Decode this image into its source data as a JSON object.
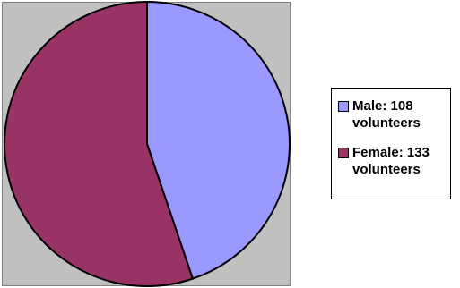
{
  "chart_data": {
    "type": "pie",
    "title": "",
    "slices": [
      {
        "label": "Male: 108 volunteers",
        "value": 108,
        "color": "#9999ff"
      },
      {
        "label": "Female: 133 volunteers",
        "value": 133,
        "color": "#993366"
      }
    ],
    "plot_background": "#c0c0c0",
    "start_angle": "top",
    "direction": "clockwise",
    "legend_position": "right"
  }
}
